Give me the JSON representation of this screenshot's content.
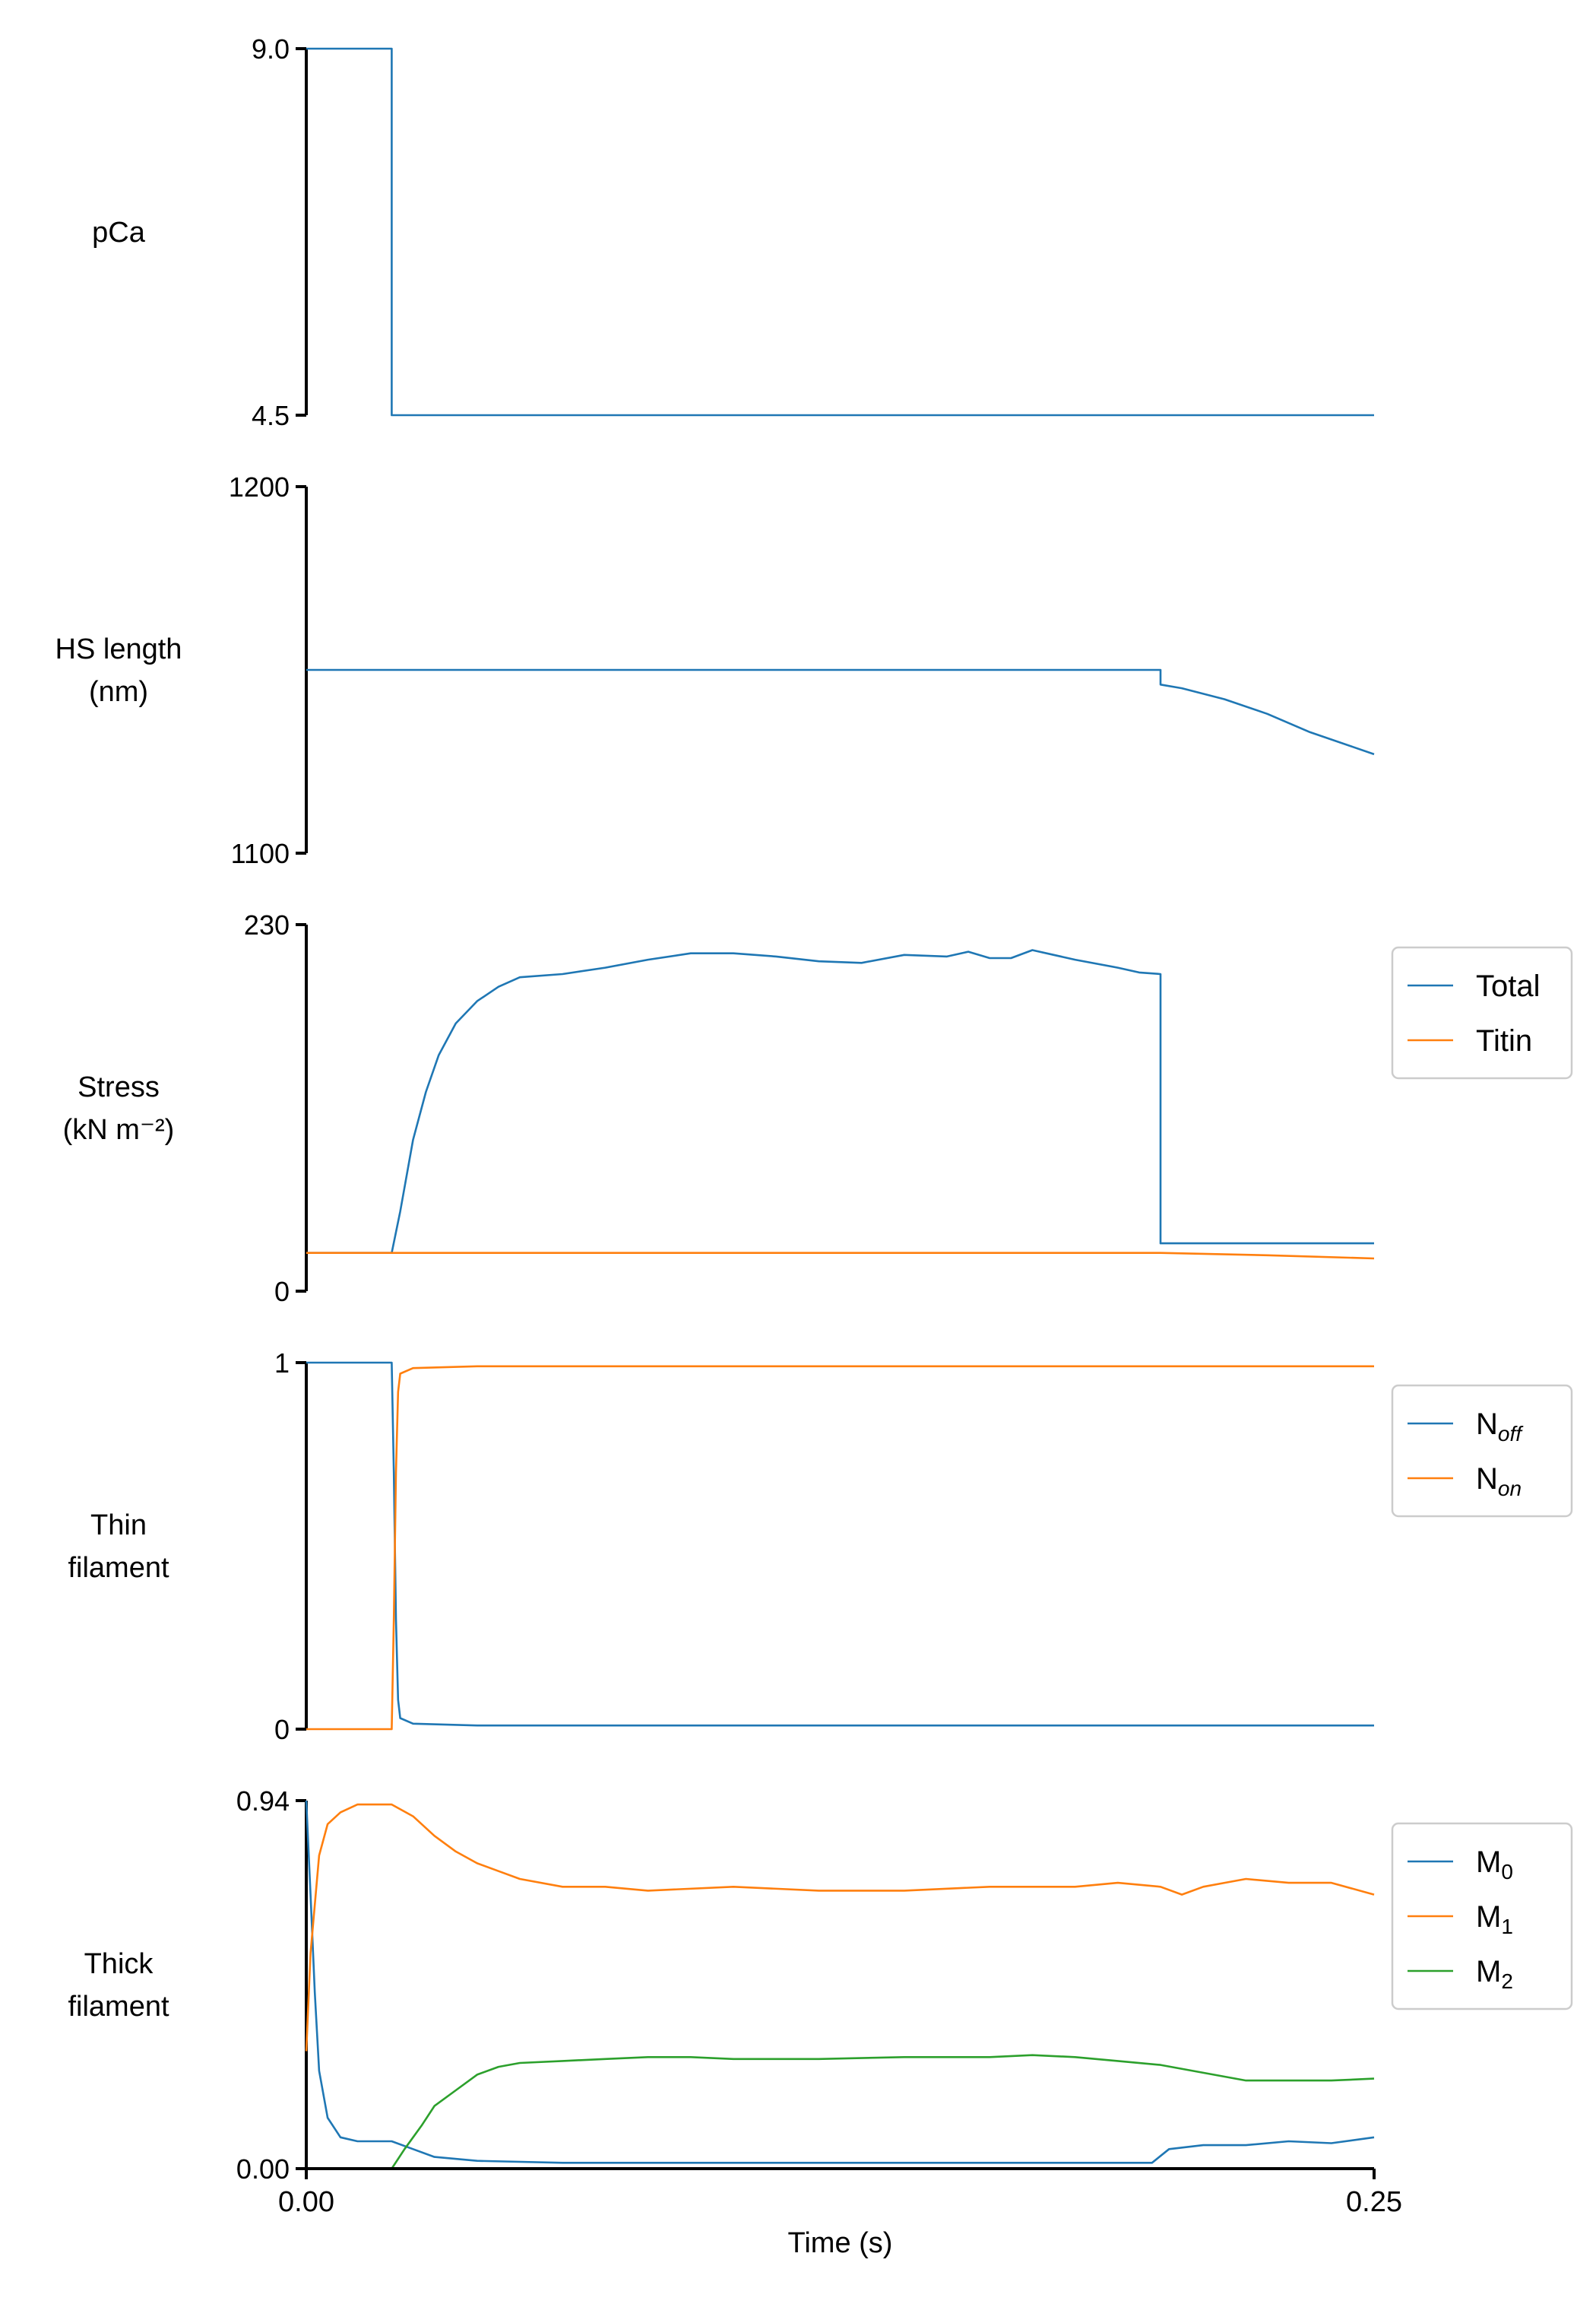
{
  "figure": {
    "xlabel": "Time (s)",
    "x_tick_labels": [
      "0.00",
      "0.25"
    ],
    "xlim": [
      0,
      0.25
    ]
  },
  "colors": {
    "series1": "#1f77b4",
    "series2": "#ff7f0e",
    "series3": "#2ca02c",
    "axis": "#000000",
    "legend_border": "#cccccc"
  },
  "chart_data": [
    {
      "type": "line",
      "ylabel_lines": [
        "pCa"
      ],
      "ylim": [
        4.5,
        9.0
      ],
      "y_tick_labels": [
        "9.0",
        "4.5"
      ],
      "y_ticks": [
        9.0,
        4.5
      ],
      "series": [
        {
          "color": "#1f77b4",
          "points": [
            [
              0,
              9.0
            ],
            [
              0.02,
              9.0
            ],
            [
              0.02,
              4.5
            ],
            [
              0.25,
              4.5
            ]
          ]
        }
      ]
    },
    {
      "type": "line",
      "ylabel_lines": [
        "HS length",
        "(nm)"
      ],
      "ylim": [
        1100,
        1200
      ],
      "y_tick_labels": [
        "1200",
        "1100"
      ],
      "y_ticks": [
        1200,
        1100
      ],
      "series": [
        {
          "color": "#1f77b4",
          "points": [
            [
              0,
              1150
            ],
            [
              0.2,
              1150
            ],
            [
              0.2,
              1146
            ],
            [
              0.205,
              1145
            ],
            [
              0.215,
              1142
            ],
            [
              0.225,
              1138
            ],
            [
              0.235,
              1133
            ],
            [
              0.245,
              1129
            ],
            [
              0.25,
              1127
            ]
          ]
        }
      ]
    },
    {
      "type": "line",
      "ylabel_lines": [
        "Stress",
        "(kN m⁻²)"
      ],
      "ylim": [
        0,
        230
      ],
      "y_tick_labels": [
        "230",
        "0"
      ],
      "y_ticks": [
        230,
        0
      ],
      "legend": {
        "entries": [
          "Total",
          "Titin"
        ],
        "placement": "right"
      },
      "series": [
        {
          "name": "Total",
          "color": "#1f77b4",
          "points": [
            [
              0,
              24
            ],
            [
              0.02,
              24
            ],
            [
              0.022,
              50
            ],
            [
              0.025,
              95
            ],
            [
              0.028,
              125
            ],
            [
              0.031,
              148
            ],
            [
              0.035,
              168
            ],
            [
              0.04,
              182
            ],
            [
              0.045,
              191
            ],
            [
              0.05,
              197
            ],
            [
              0.06,
              199
            ],
            [
              0.07,
              203
            ],
            [
              0.08,
              208
            ],
            [
              0.09,
              212
            ],
            [
              0.1,
              212
            ],
            [
              0.11,
              210
            ],
            [
              0.12,
              207
            ],
            [
              0.13,
              206
            ],
            [
              0.14,
              211
            ],
            [
              0.15,
              210
            ],
            [
              0.155,
              213
            ],
            [
              0.16,
              209
            ],
            [
              0.165,
              209
            ],
            [
              0.17,
              214
            ],
            [
              0.175,
              211
            ],
            [
              0.18,
              208
            ],
            [
              0.19,
              203
            ],
            [
              0.195,
              200
            ],
            [
              0.2,
              199
            ],
            [
              0.2,
              30
            ],
            [
              0.25,
              30
            ]
          ]
        },
        {
          "name": "Titin",
          "color": "#ff7f0e",
          "points": [
            [
              0,
              24
            ],
            [
              0.2,
              24
            ],
            [
              0.225,
              22.5
            ],
            [
              0.25,
              20.5
            ]
          ]
        }
      ]
    },
    {
      "type": "line",
      "ylabel_lines": [
        "Thin",
        "filament"
      ],
      "ylim": [
        0,
        1
      ],
      "y_tick_labels": [
        "1",
        "0"
      ],
      "y_ticks": [
        1,
        0
      ],
      "legend": {
        "entries": [
          "N",
          "N"
        ],
        "subscripts": [
          "off",
          "on"
        ],
        "placement": "right"
      },
      "series": [
        {
          "name": "N_off",
          "color": "#1f77b4",
          "points": [
            [
              0,
              1
            ],
            [
              0.02,
              1
            ],
            [
              0.0205,
              0.7
            ],
            [
              0.021,
              0.3
            ],
            [
              0.0215,
              0.08
            ],
            [
              0.022,
              0.03
            ],
            [
              0.025,
              0.015
            ],
            [
              0.04,
              0.01
            ],
            [
              0.25,
              0.01
            ]
          ]
        },
        {
          "name": "N_on",
          "color": "#ff7f0e",
          "points": [
            [
              0,
              0
            ],
            [
              0.02,
              0
            ],
            [
              0.0205,
              0.3
            ],
            [
              0.021,
              0.7
            ],
            [
              0.0215,
              0.92
            ],
            [
              0.022,
              0.97
            ],
            [
              0.025,
              0.985
            ],
            [
              0.04,
              0.99
            ],
            [
              0.25,
              0.99
            ]
          ]
        }
      ]
    },
    {
      "type": "line",
      "ylabel_lines": [
        "Thick",
        "filament"
      ],
      "ylim": [
        0,
        0.94
      ],
      "y_tick_labels": [
        "0.94",
        "0.00"
      ],
      "y_ticks": [
        0.94,
        0.0
      ],
      "legend": {
        "entries": [
          "M",
          "M",
          "M"
        ],
        "subscripts": [
          "0",
          "1",
          "2"
        ],
        "placement": "right"
      },
      "series": [
        {
          "name": "M0",
          "color": "#1f77b4",
          "points": [
            [
              0,
              0.94
            ],
            [
              0.001,
              0.7
            ],
            [
              0.002,
              0.45
            ],
            [
              0.003,
              0.25
            ],
            [
              0.005,
              0.13
            ],
            [
              0.008,
              0.08
            ],
            [
              0.012,
              0.07
            ],
            [
              0.017,
              0.07
            ],
            [
              0.02,
              0.07
            ],
            [
              0.025,
              0.05
            ],
            [
              0.03,
              0.03
            ],
            [
              0.04,
              0.02
            ],
            [
              0.06,
              0.015
            ],
            [
              0.1,
              0.015
            ],
            [
              0.15,
              0.015
            ],
            [
              0.198,
              0.015
            ],
            [
              0.202,
              0.05
            ],
            [
              0.21,
              0.06
            ],
            [
              0.22,
              0.06
            ],
            [
              0.23,
              0.07
            ],
            [
              0.24,
              0.065
            ],
            [
              0.25,
              0.08
            ]
          ]
        },
        {
          "name": "M1",
          "color": "#ff7f0e",
          "points": [
            [
              0,
              0.3
            ],
            [
              0.001,
              0.55
            ],
            [
              0.003,
              0.8
            ],
            [
              0.005,
              0.88
            ],
            [
              0.008,
              0.91
            ],
            [
              0.012,
              0.93
            ],
            [
              0.017,
              0.93
            ],
            [
              0.02,
              0.93
            ],
            [
              0.025,
              0.9
            ],
            [
              0.03,
              0.85
            ],
            [
              0.035,
              0.81
            ],
            [
              0.04,
              0.78
            ],
            [
              0.045,
              0.76
            ],
            [
              0.05,
              0.74
            ],
            [
              0.06,
              0.72
            ],
            [
              0.07,
              0.72
            ],
            [
              0.08,
              0.71
            ],
            [
              0.1,
              0.72
            ],
            [
              0.12,
              0.71
            ],
            [
              0.14,
              0.71
            ],
            [
              0.16,
              0.72
            ],
            [
              0.18,
              0.72
            ],
            [
              0.19,
              0.73
            ],
            [
              0.2,
              0.72
            ],
            [
              0.205,
              0.7
            ],
            [
              0.21,
              0.72
            ],
            [
              0.215,
              0.73
            ],
            [
              0.22,
              0.74
            ],
            [
              0.23,
              0.73
            ],
            [
              0.24,
              0.73
            ],
            [
              0.25,
              0.7
            ]
          ]
        },
        {
          "name": "M2",
          "color": "#2ca02c",
          "points": [
            [
              0.02,
              0.0
            ],
            [
              0.023,
              0.05
            ],
            [
              0.027,
              0.11
            ],
            [
              0.03,
              0.16
            ],
            [
              0.035,
              0.2
            ],
            [
              0.04,
              0.24
            ],
            [
              0.045,
              0.26
            ],
            [
              0.05,
              0.27
            ],
            [
              0.06,
              0.275
            ],
            [
              0.07,
              0.28
            ],
            [
              0.08,
              0.285
            ],
            [
              0.09,
              0.285
            ],
            [
              0.1,
              0.28
            ],
            [
              0.12,
              0.28
            ],
            [
              0.14,
              0.285
            ],
            [
              0.16,
              0.285
            ],
            [
              0.17,
              0.29
            ],
            [
              0.18,
              0.285
            ],
            [
              0.19,
              0.275
            ],
            [
              0.2,
              0.265
            ],
            [
              0.21,
              0.245
            ],
            [
              0.22,
              0.225
            ],
            [
              0.23,
              0.225
            ],
            [
              0.24,
              0.225
            ],
            [
              0.25,
              0.23
            ]
          ]
        }
      ]
    }
  ]
}
